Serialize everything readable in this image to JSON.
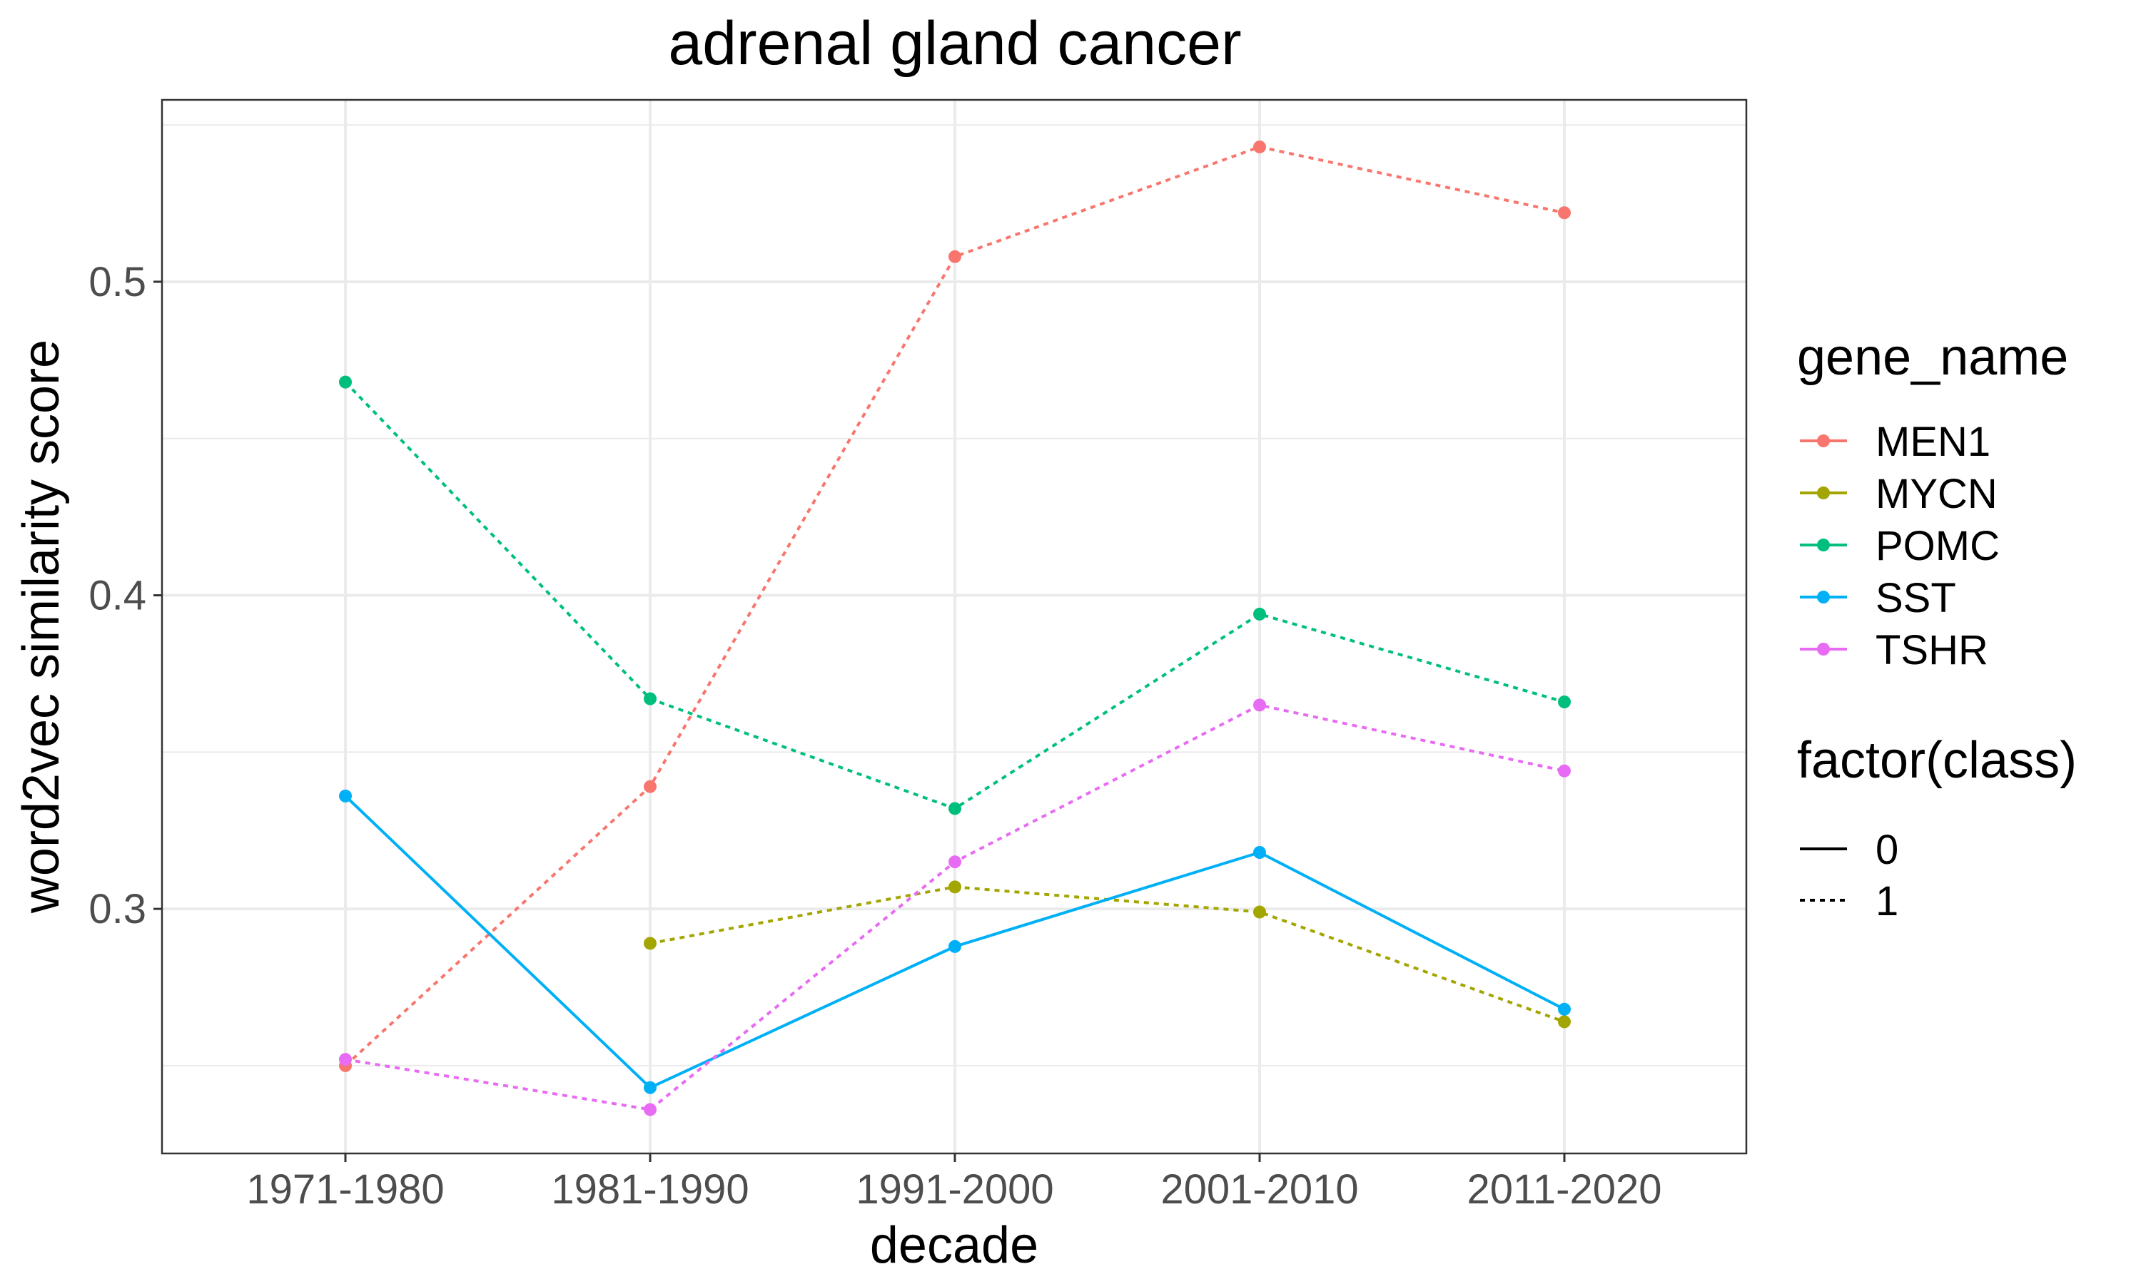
{
  "chart_data": {
    "type": "line",
    "title": "adrenal gland cancer",
    "xlabel": "decade",
    "ylabel": "word2vec similarity score",
    "categories": [
      "1971-1980",
      "1981-1990",
      "1991-2000",
      "2001-2010",
      "2011-2020"
    ],
    "ylim": [
      0.222,
      0.558
    ],
    "yticks": [
      0.3,
      0.4,
      0.5
    ],
    "ytick_labels": [
      "0.3",
      "0.4",
      "0.5"
    ],
    "grid": true,
    "legend_position": "right",
    "color_legend_title": "gene_name",
    "linetype_legend_title": "factor(class)",
    "linetype_legend": [
      {
        "label": "0",
        "style": "solid"
      },
      {
        "label": "1",
        "style": "dotted"
      }
    ],
    "series": [
      {
        "name": "MEN1",
        "color": "#F8766D",
        "class": "1",
        "values": [
          0.25,
          0.339,
          0.508,
          0.543,
          0.522
        ]
      },
      {
        "name": "MYCN",
        "color": "#A3A500",
        "class": "1",
        "values": [
          null,
          0.289,
          0.307,
          0.299,
          0.264
        ]
      },
      {
        "name": "POMC",
        "color": "#00BF7D",
        "class": "1",
        "values": [
          0.468,
          0.367,
          0.332,
          0.394,
          0.366
        ]
      },
      {
        "name": "SST",
        "color": "#00B0F6",
        "class": "0",
        "values": [
          0.336,
          0.243,
          0.288,
          0.318,
          0.268
        ]
      },
      {
        "name": "TSHR",
        "color": "#E76BF3",
        "class": "1",
        "values": [
          0.252,
          0.236,
          0.315,
          0.365,
          0.344
        ]
      }
    ]
  }
}
